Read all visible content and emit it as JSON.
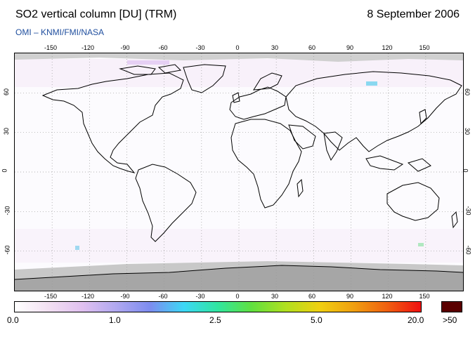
{
  "header": {
    "title": "SO2 vertical column [DU] (TRM)",
    "date": "8 September 2006",
    "credit": "OMI  –  KNMI/FMI/NASA"
  },
  "map": {
    "lon_ticks_top": [
      "-150",
      "-120",
      "-90",
      "-60",
      "-30",
      "0",
      "30",
      "60",
      "90",
      "120",
      "150"
    ],
    "lon_ticks_bottom": [
      "-150",
      "-120",
      "-90",
      "-60",
      "-30",
      "0",
      "30",
      "60",
      "90",
      "120",
      "150"
    ],
    "lat_ticks": [
      "60",
      "30",
      "0",
      "-30",
      "-60"
    ],
    "lon_range": [
      -180,
      180
    ],
    "lat_range": [
      -90,
      90
    ],
    "land_outline_color": "#000000",
    "no_data_color": "#a6a6a6",
    "grid": "dotted"
  },
  "colorbar": {
    "labels": [
      "0.0",
      "1.0",
      "2.5",
      "5.0",
      "20.0"
    ],
    "overflow_label": ">50",
    "overflow_color": "#5a0000",
    "colors": [
      "#ffffff",
      "#f2e0f2",
      "#e0c0f0",
      "#b0a8f0",
      "#7d8cf0",
      "#3cd8f6",
      "#30e6a0",
      "#60e040",
      "#b0e020",
      "#f0d010",
      "#f0a010",
      "#f06010",
      "#f01010"
    ]
  }
}
